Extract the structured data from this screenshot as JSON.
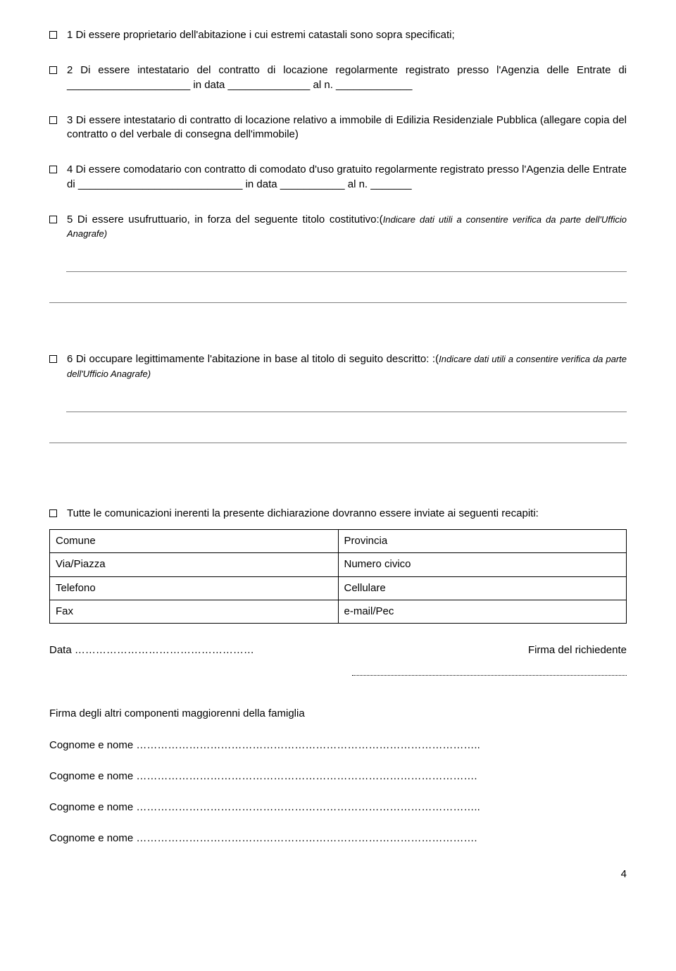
{
  "items": {
    "i1": "1 Di essere proprietario dell'abitazione i cui estremi catastali sono sopra specificati;",
    "i2": "2 Di essere intestatario del contratto di locazione regolarmente registrato presso l'Agenzia delle Entrate di _____________________ in data ______________ al n. _____________",
    "i3": "3 Di essere intestatario di contratto di locazione relativo a immobile di Edilizia Residenziale Pubblica (allegare copia del contratto o del verbale di consegna dell'immobile)",
    "i4": "4 Di essere comodatario con contratto di comodato d'uso gratuito regolarmente registrato presso l'Agenzia delle Entrate di ____________________________ in data ___________ al n. _______",
    "i5_main": "5 Di essere usufruttuario, in forza del seguente titolo costitutivo:(",
    "i5_note": "Indicare dati utili a consentire verifica da parte dell'Ufficio Anagrafe)",
    "i6_main": "6 Di occupare legittimamente l'abitazione in base al titolo di seguito descritto: :(",
    "i6_note": "Indicare dati utili a consentire verifica da parte dell'Ufficio Anagrafe)"
  },
  "comm_intro": "Tutte le comunicazioni inerenti la presente dichiarazione dovranno essere inviate ai seguenti recapiti:",
  "table": {
    "r1c1": "Comune",
    "r1c2": "Provincia",
    "r2c1": "Via/Piazza",
    "r2c2": "Numero civico",
    "r3c1": "Telefono",
    "r3c2": "Cellulare",
    "r4c1": "Fax",
    "r4c2": "e-mail/Pec"
  },
  "signature": {
    "data_label": "Data ……………………………………………",
    "firma_rich": "Firma del richiedente",
    "firma_altri": "Firma degli altri componenti maggiorenni della famiglia",
    "cognome1": "Cognome e nome ……………………………………………………………………………………..",
    "cognome2": "Cognome e nome …………………………………………………………………………………….",
    "cognome3": "Cognome e nome ……………………………………………………………………………………..",
    "cognome4": "Cognome e nome ……………………………………………………………………………………."
  },
  "page_number": "4"
}
